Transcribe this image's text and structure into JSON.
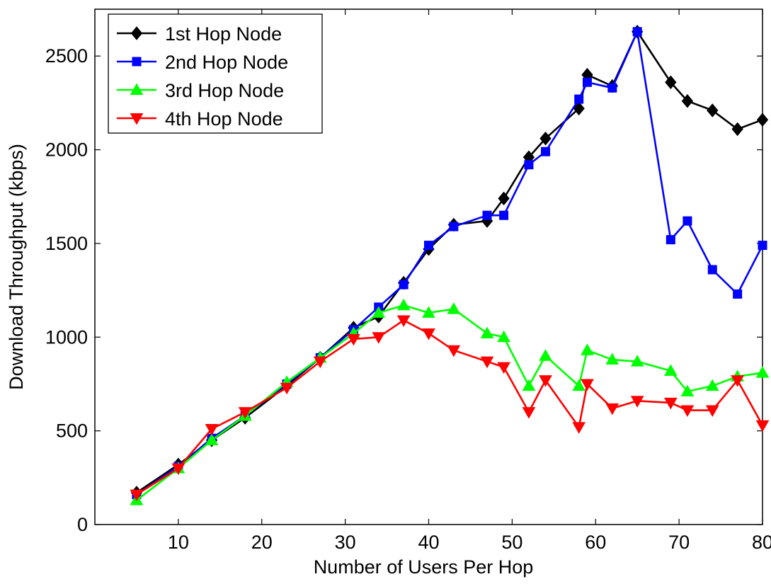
{
  "chart_data": {
    "type": "line",
    "title": "",
    "xlabel": "Number of Users Per Hop",
    "ylabel": "Download Throughput (kbps)",
    "xlim": [
      0,
      80
    ],
    "ylim": [
      0,
      2750
    ],
    "xticks": [
      10,
      20,
      30,
      40,
      50,
      60,
      70,
      80
    ],
    "yticks": [
      0,
      500,
      1000,
      1500,
      2000,
      2500
    ],
    "grid": false,
    "legend_position": "top-left",
    "series": [
      {
        "name": "1st Hop Node",
        "color": "#000000",
        "marker": "diamond",
        "x": [
          5,
          10,
          14,
          18,
          23,
          27,
          31,
          34,
          37,
          40,
          43,
          47,
          49,
          52,
          54,
          58,
          59,
          62,
          65,
          69,
          71,
          74,
          77,
          80
        ],
        "y": [
          170,
          320,
          450,
          570,
          740,
          890,
          1050,
          1110,
          1290,
          1470,
          1600,
          1620,
          1740,
          1960,
          2060,
          2220,
          2400,
          2340,
          2630,
          2360,
          2260,
          2210,
          2110,
          2160
        ]
      },
      {
        "name": "2nd Hop Node",
        "color": "#0000ff",
        "marker": "square",
        "x": [
          5,
          10,
          14,
          18,
          23,
          27,
          31,
          34,
          37,
          40,
          43,
          47,
          49,
          52,
          54,
          58,
          59,
          62,
          65,
          69,
          71,
          74,
          77,
          80
        ],
        "y": [
          160,
          310,
          460,
          580,
          750,
          890,
          1040,
          1160,
          1280,
          1490,
          1590,
          1650,
          1650,
          1920,
          1990,
          2270,
          2360,
          2330,
          2630,
          1520,
          1620,
          1360,
          1230,
          1490
        ]
      },
      {
        "name": "3rd Hop Node",
        "color": "#00ff00",
        "marker": "triangle-up",
        "x": [
          5,
          10,
          14,
          18,
          23,
          27,
          31,
          34,
          37,
          40,
          43,
          47,
          49,
          52,
          54,
          58,
          59,
          62,
          65,
          69,
          71,
          74,
          77,
          80
        ],
        "y": [
          130,
          300,
          450,
          580,
          760,
          890,
          1020,
          1130,
          1170,
          1130,
          1150,
          1020,
          1000,
          740,
          900,
          740,
          930,
          880,
          870,
          820,
          710,
          740,
          790,
          810
        ]
      },
      {
        "name": "4th Hop Node",
        "color": "#ff0000",
        "marker": "triangle-down",
        "x": [
          5,
          10,
          14,
          18,
          23,
          27,
          31,
          34,
          37,
          40,
          43,
          47,
          49,
          52,
          54,
          58,
          59,
          62,
          65,
          69,
          71,
          74,
          77,
          80
        ],
        "y": [
          160,
          300,
          510,
          600,
          730,
          870,
          990,
          1000,
          1090,
          1020,
          930,
          870,
          840,
          600,
          770,
          520,
          750,
          620,
          660,
          650,
          610,
          610,
          770,
          530
        ]
      }
    ]
  }
}
